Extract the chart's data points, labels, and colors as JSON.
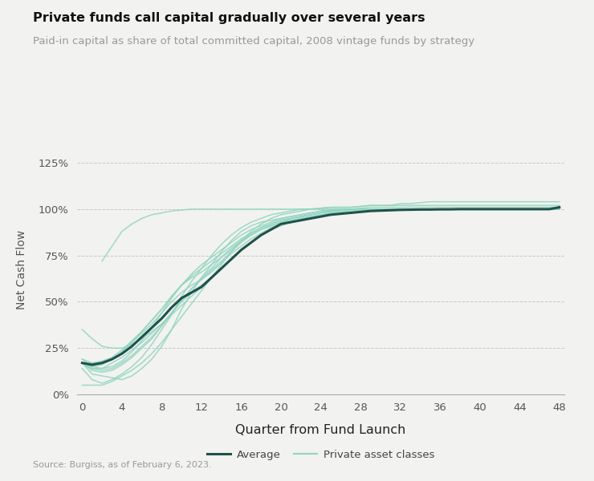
{
  "title": "Private funds call capital gradually over several years",
  "subtitle": "Paid-in capital as share of total committed capital, 2008 vintage funds by strategy",
  "xlabel": "Quarter from Fund Launch",
  "ylabel": "Net Cash Flow",
  "source": "Source: Burgiss, as of February 6, 2023.",
  "background_color": "#f2f2f0",
  "plot_bg_color": "#f2f2f0",
  "avg_color": "#1e524a",
  "line_color": "#90d5c0",
  "xticks": [
    0,
    4,
    8,
    12,
    16,
    20,
    24,
    28,
    32,
    36,
    40,
    44,
    48
  ],
  "yticks": [
    0,
    25,
    50,
    75,
    100,
    125
  ],
  "xlim": [
    -0.5,
    48.5
  ],
  "ylim": [
    0,
    135
  ],
  "avg_x": [
    0,
    1,
    2,
    3,
    4,
    5,
    6,
    7,
    8,
    9,
    10,
    11,
    12,
    13,
    14,
    15,
    16,
    17,
    18,
    19,
    20,
    21,
    22,
    23,
    24,
    25,
    26,
    27,
    28,
    29,
    30,
    31,
    32,
    33,
    34,
    35,
    36,
    37,
    38,
    39,
    40,
    41,
    42,
    43,
    44,
    45,
    46,
    47,
    48
  ],
  "avg_y": [
    17,
    16,
    17,
    19,
    22,
    26,
    31,
    36,
    41,
    47,
    52,
    55,
    58,
    63,
    68,
    73,
    78,
    82,
    86,
    89,
    92,
    93,
    94,
    95,
    96,
    97,
    97.5,
    98,
    98.5,
    99,
    99.2,
    99.4,
    99.6,
    99.7,
    99.8,
    99.8,
    99.9,
    99.9,
    100,
    100,
    100,
    100,
    100,
    100,
    100,
    100,
    100,
    100,
    101
  ],
  "individual_lines": [
    {
      "x": [
        0,
        1,
        2,
        3,
        4,
        5,
        6,
        7,
        8,
        9,
        10,
        11,
        12,
        13,
        14,
        15,
        16,
        17,
        18,
        19,
        20,
        21,
        22,
        23,
        24,
        25,
        26,
        27,
        28,
        29,
        30,
        31,
        32,
        33,
        34,
        35,
        36,
        37,
        38,
        39,
        40,
        41,
        42,
        43,
        44,
        45,
        46,
        47,
        48
      ],
      "y": [
        17,
        11,
        10,
        9,
        8,
        10,
        14,
        19,
        26,
        35,
        46,
        55,
        63,
        70,
        77,
        83,
        88,
        91,
        93,
        94,
        95,
        96,
        97,
        98,
        99,
        99.5,
        100,
        100,
        100.5,
        101,
        101,
        101,
        101,
        101,
        101,
        101,
        101,
        101,
        101,
        101,
        101,
        101,
        101,
        101,
        101,
        101,
        101,
        101,
        101
      ]
    },
    {
      "x": [
        0,
        1,
        2,
        3,
        4,
        5,
        6,
        7,
        8,
        9,
        10,
        11,
        12,
        13,
        14,
        15,
        16,
        17,
        18,
        19,
        20,
        21,
        22,
        23,
        24,
        25,
        26,
        27,
        28,
        29,
        30,
        31,
        32,
        33,
        34,
        35,
        36,
        37,
        38,
        39,
        40,
        41,
        42,
        43,
        44,
        45,
        46,
        47,
        48
      ],
      "y": [
        17,
        13,
        12,
        13,
        16,
        20,
        25,
        30,
        37,
        44,
        51,
        57,
        62,
        67,
        72,
        77,
        82,
        86,
        89,
        91,
        93,
        95,
        96,
        97,
        98,
        99,
        99.5,
        100,
        100,
        100,
        100,
        100,
        100,
        100,
        100,
        100,
        100,
        100,
        100,
        100,
        100,
        100,
        100,
        100,
        100,
        100,
        100,
        100,
        100
      ]
    },
    {
      "x": [
        0,
        1,
        2,
        3,
        4,
        5,
        6,
        7,
        8,
        9,
        10,
        11,
        12,
        13,
        14,
        15,
        16,
        17,
        18,
        19,
        20,
        21,
        22,
        23,
        24,
        25,
        26,
        27,
        28,
        29,
        30,
        31,
        32,
        33,
        34,
        35,
        36,
        37,
        38,
        39,
        40,
        41,
        42,
        43,
        44,
        45,
        46,
        47,
        48
      ],
      "y": [
        14,
        8,
        6,
        8,
        11,
        15,
        20,
        27,
        35,
        43,
        53,
        61,
        68,
        75,
        81,
        86,
        90,
        93,
        95,
        97,
        98,
        99,
        100,
        100,
        100.5,
        101,
        101,
        101,
        101.5,
        102,
        102,
        102,
        102,
        102,
        102,
        102,
        102,
        102,
        102,
        102,
        102,
        102,
        102,
        102,
        102,
        102,
        102,
        102,
        102
      ]
    },
    {
      "x": [
        0,
        1,
        2,
        3,
        4,
        5,
        6,
        7,
        8,
        9,
        10,
        11,
        12,
        13,
        14,
        15,
        16,
        17,
        18,
        19,
        20,
        21,
        22,
        23,
        24,
        25,
        26,
        27,
        28,
        29,
        30,
        31,
        32,
        33,
        34,
        35,
        36,
        37,
        38,
        39,
        40,
        41,
        42,
        43,
        44,
        45,
        46,
        47,
        48
      ],
      "y": [
        17,
        15,
        16,
        19,
        23,
        28,
        34,
        40,
        46,
        53,
        59,
        63,
        66,
        70,
        74,
        78,
        83,
        86,
        89,
        91,
        93,
        94,
        95,
        96,
        97,
        98,
        98.5,
        99,
        99.5,
        100,
        100,
        100,
        100,
        100,
        100,
        100,
        100,
        100,
        100,
        100,
        100,
        100,
        100,
        100,
        100,
        100,
        100,
        100,
        100
      ]
    },
    {
      "x": [
        0,
        1,
        2,
        3,
        4,
        5,
        6,
        7,
        8,
        9,
        10,
        11,
        12,
        13,
        14,
        15,
        16,
        17,
        18,
        19,
        20,
        21,
        22,
        23,
        24,
        25,
        26,
        27,
        28,
        29,
        30,
        31,
        32,
        33,
        34,
        35,
        36,
        37,
        38,
        39,
        40,
        41,
        42,
        43,
        44,
        45,
        46,
        47,
        48
      ],
      "y": [
        19,
        17,
        17,
        19,
        23,
        28,
        33,
        38,
        44,
        50,
        55,
        59,
        62,
        66,
        71,
        76,
        80,
        84,
        87,
        90,
        92,
        93,
        94,
        95,
        96,
        97,
        97.5,
        98,
        98.5,
        99,
        99,
        99.5,
        100,
        100,
        100,
        100,
        100,
        100,
        100,
        100,
        100,
        100,
        100,
        100,
        100,
        100,
        100,
        100,
        100
      ]
    },
    {
      "x": [
        0,
        1,
        2,
        3,
        4,
        5,
        6,
        7,
        8,
        9,
        10,
        11,
        12,
        13,
        14,
        15,
        16,
        17,
        18,
        19,
        20,
        21,
        22,
        23,
        24,
        25,
        26,
        27,
        28,
        29,
        30,
        31,
        32,
        33,
        34,
        35,
        36,
        37,
        38,
        39,
        40,
        41,
        42,
        43,
        44,
        45,
        46,
        47,
        48
      ],
      "y": [
        17,
        14,
        14,
        17,
        20,
        24,
        28,
        33,
        38,
        44,
        50,
        55,
        59,
        63,
        68,
        73,
        78,
        82,
        86,
        89,
        91,
        93,
        94,
        95,
        96,
        97,
        97.5,
        98,
        98.5,
        99,
        99.5,
        100,
        100,
        100,
        100,
        100,
        100,
        100,
        100,
        100,
        100,
        100,
        100,
        100,
        100,
        100,
        100,
        100,
        100
      ]
    },
    {
      "x": [
        0,
        1,
        2,
        3,
        4,
        5,
        6,
        7,
        8,
        9,
        10,
        11,
        12,
        13,
        14,
        15,
        16,
        17,
        18,
        19,
        20,
        21,
        22,
        23,
        24,
        25,
        26,
        27,
        28,
        29,
        30,
        31,
        32,
        33,
        34,
        35,
        36,
        37,
        38,
        39,
        40,
        41,
        42,
        43,
        44,
        45,
        46,
        47,
        48
      ],
      "y": [
        35,
        30,
        26,
        25,
        25,
        27,
        30,
        34,
        38,
        43,
        48,
        53,
        58,
        63,
        68,
        73,
        78,
        82,
        86,
        89,
        92,
        94,
        95,
        96,
        97,
        97.5,
        98,
        98.5,
        99,
        99,
        99.5,
        100,
        100,
        100,
        100,
        100,
        100,
        100,
        100,
        100,
        100,
        100,
        100,
        100,
        100,
        100,
        100,
        100,
        100
      ]
    },
    {
      "x": [
        0,
        1,
        2,
        3,
        4,
        5,
        6,
        7,
        8,
        9,
        10,
        11,
        12,
        13,
        14,
        15,
        16,
        17,
        18,
        19,
        20,
        21,
        22,
        23,
        24,
        25,
        26,
        27,
        28,
        29,
        30,
        31,
        32,
        33,
        34,
        35,
        36,
        37,
        38,
        39,
        40,
        41,
        42,
        43,
        44,
        45,
        46,
        47,
        48
      ],
      "y": [
        5,
        5,
        5,
        7,
        10,
        13,
        17,
        22,
        28,
        35,
        42,
        49,
        56,
        63,
        70,
        77,
        83,
        88,
        92,
        95,
        97,
        98,
        99,
        100,
        100.5,
        101,
        101,
        101,
        101.5,
        102,
        102,
        102,
        103,
        103,
        103.5,
        104,
        104,
        104,
        104,
        104,
        104,
        104,
        104,
        104,
        104,
        104,
        104,
        104,
        104
      ]
    },
    {
      "x": [
        0,
        1,
        2,
        3,
        4,
        5,
        6,
        7,
        8,
        9,
        10,
        11,
        12,
        13,
        14,
        15,
        16,
        17,
        18,
        19,
        20,
        21,
        22,
        23,
        24,
        25,
        26,
        27,
        28,
        29,
        30,
        31,
        32,
        33,
        34,
        35,
        36,
        37,
        38,
        39,
        40,
        41,
        42,
        43,
        44,
        45,
        46,
        47,
        48
      ],
      "y": [
        17,
        17,
        18,
        20,
        24,
        29,
        34,
        40,
        46,
        53,
        59,
        64,
        68,
        72,
        76,
        80,
        84,
        87,
        90,
        92,
        94,
        95,
        96,
        97,
        98,
        98.5,
        99,
        99.5,
        100,
        100,
        100,
        100,
        100,
        100,
        100,
        100,
        100,
        100,
        100,
        100,
        100,
        100,
        100,
        100,
        100,
        100,
        100,
        100,
        100
      ]
    },
    {
      "x": [
        0,
        1,
        2,
        3,
        4,
        5,
        6,
        7,
        8,
        9,
        10,
        11,
        12,
        13,
        14,
        15,
        16,
        17,
        18,
        19,
        20,
        21,
        22,
        23,
        24,
        25,
        26,
        27,
        28,
        29,
        30,
        31,
        32,
        33,
        34,
        35,
        36,
        37,
        38,
        39,
        40,
        41,
        42,
        43,
        44,
        45,
        46,
        47,
        48
      ],
      "y": [
        17,
        14,
        13,
        14,
        17,
        21,
        26,
        31,
        37,
        44,
        51,
        57,
        63,
        68,
        74,
        79,
        83,
        87,
        90,
        92,
        94,
        95,
        96,
        97,
        98,
        99,
        99.5,
        100,
        100,
        100,
        100,
        100,
        100,
        100,
        100,
        100,
        100,
        100,
        100,
        100,
        100,
        100,
        100,
        100,
        100,
        100,
        100,
        100,
        100
      ]
    },
    {
      "x": [
        0,
        1,
        2,
        3,
        4,
        5,
        6,
        7,
        8,
        9,
        10,
        11,
        12,
        13,
        14,
        15,
        16,
        17,
        18,
        19,
        20,
        21,
        22,
        23,
        24,
        25,
        26,
        27,
        28,
        29,
        30,
        31,
        32,
        33,
        34,
        35,
        36,
        37,
        38,
        39,
        40,
        41,
        42,
        43,
        44,
        45,
        46,
        47,
        48
      ],
      "y": [
        19,
        15,
        14,
        15,
        18,
        23,
        29,
        36,
        44,
        52,
        59,
        65,
        70,
        74,
        78,
        82,
        86,
        89,
        91,
        93,
        95,
        96,
        97,
        98,
        99,
        99.5,
        100,
        100,
        100,
        100,
        100,
        100,
        100,
        100,
        100,
        100,
        100,
        100,
        100,
        100,
        100,
        100,
        100,
        100,
        100,
        100,
        100,
        100,
        100
      ]
    },
    {
      "x": [
        2,
        3,
        4,
        5,
        6,
        7,
        8,
        9,
        10,
        11,
        12,
        13,
        14,
        15,
        16,
        17,
        18,
        19,
        20,
        21,
        22,
        23,
        24,
        25,
        26,
        27,
        28,
        29,
        30,
        31,
        32,
        33,
        34,
        35,
        36,
        37,
        38,
        39,
        40,
        41,
        42,
        43,
        44,
        45,
        46,
        47,
        48
      ],
      "y": [
        72,
        80,
        88,
        92,
        95,
        97,
        98,
        99,
        99.5,
        100,
        100,
        100,
        100,
        100,
        100,
        100,
        100,
        100,
        100,
        100,
        100,
        100,
        100,
        100,
        100,
        100,
        100,
        100,
        100,
        100,
        100,
        100,
        100,
        100,
        100,
        100,
        100,
        100,
        100,
        100,
        100,
        100,
        100,
        100,
        100,
        100,
        100
      ]
    }
  ]
}
